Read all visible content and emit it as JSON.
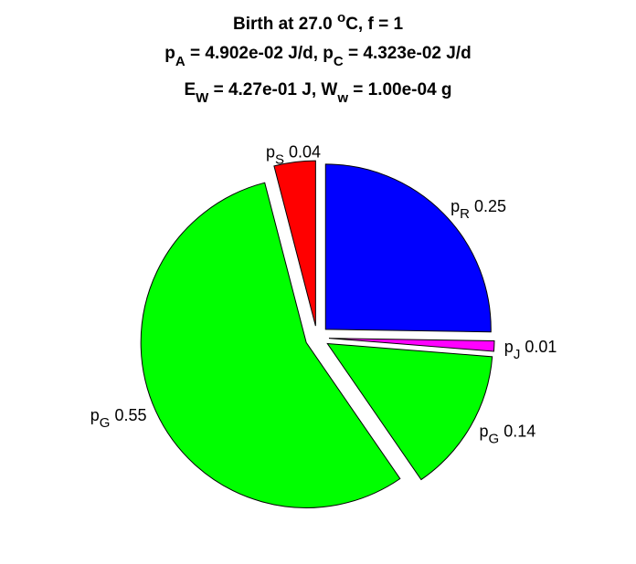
{
  "chart_data": {
    "type": "pie",
    "title_lines": [
      {
        "parts": [
          "Birth at 27.0 ",
          "o",
          "C, f = 1"
        ],
        "kinds": [
          "n",
          "sup",
          "n"
        ]
      },
      {
        "parts": [
          "p",
          "A",
          " = 4.902e-02 J/d, p",
          "C",
          " = 4.323e-02 J/d"
        ],
        "kinds": [
          "n",
          "sub",
          "n",
          "sub",
          "n"
        ]
      },
      {
        "parts": [
          "E",
          "W",
          " = 4.27e-01 J, W",
          "w",
          " = 1.00e-04 g"
        ],
        "kinds": [
          "n",
          "sub",
          "n",
          "sub",
          "n"
        ]
      }
    ],
    "slices": [
      {
        "label_main": "p",
        "label_sub": "R",
        "value": 0.25,
        "value_text": "0.25",
        "color": "#0000ff"
      },
      {
        "label_main": "p",
        "label_sub": "J",
        "value": 0.01,
        "value_text": "0.01",
        "color": "#ff00ff"
      },
      {
        "label_main": "p",
        "label_sub": "G",
        "value": 0.14,
        "value_text": "0.14",
        "color": "#00ff00"
      },
      {
        "label_main": "p",
        "label_sub": "G",
        "value": 0.55,
        "value_text": "0.55",
        "color": "#00ff00"
      },
      {
        "label_main": "p",
        "label_sub": "S",
        "value": 0.04,
        "value_text": "0.04",
        "color": "#ff0000"
      }
    ],
    "start_angle_deg": 90,
    "direction": "clockwise",
    "exploded": true
  }
}
